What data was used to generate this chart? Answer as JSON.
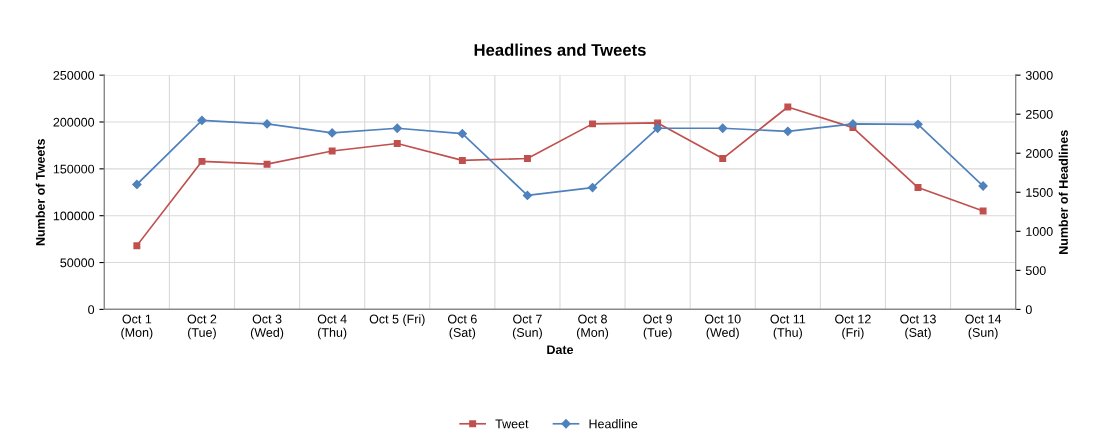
{
  "chart_data": {
    "type": "line",
    "title": "Headlines and Tweets",
    "xlabel": "Date",
    "ylabel": "Number of Tweets",
    "y2label": "Number of Headlines",
    "categories": [
      "Oct 1\n(Mon)",
      "Oct 2\n(Tue)",
      "Oct 3\n(Wed)",
      "Oct 4\n(Thu)",
      "Oct 5 (Fri)",
      "Oct 6\n(Sat)",
      "Oct 7\n(Sun)",
      "Oct 8\n(Mon)",
      "Oct 9\n(Tue)",
      "Oct 10\n(Wed)",
      "Oct 11\n(Thu)",
      "Oct 12\n(Fri)",
      "Oct 13\n(Sat)",
      "Oct 14\n(Sun)"
    ],
    "series": [
      {
        "name": "Tweet",
        "color": "#c0504d",
        "marker": "square",
        "values": [
          68000,
          158000,
          155000,
          169000,
          177000,
          159000,
          161000,
          198000,
          199000,
          161000,
          216000,
          194000,
          130000,
          105000
        ]
      },
      {
        "name": "Headline",
        "color": "#4f81bd",
        "marker": "diamond",
        "axis": "y2",
        "values": [
          1600,
          2420,
          2375,
          2260,
          2320,
          2250,
          1460,
          1560,
          2320,
          2320,
          2280,
          2375,
          2370,
          1580
        ]
      }
    ],
    "ylim": [
      0,
      250000
    ],
    "yticks": [
      0,
      50000,
      100000,
      150000,
      200000,
      250000
    ],
    "y2lim": [
      0,
      3000
    ],
    "y2ticks": [
      0,
      500,
      1000,
      1500,
      2000,
      2500,
      3000
    ],
    "grid": true,
    "legend": "bottom",
    "line_style": "solid"
  }
}
